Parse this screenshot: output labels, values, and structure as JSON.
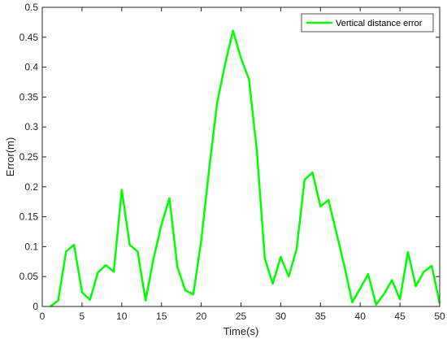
{
  "chart_data": {
    "type": "line",
    "title": "",
    "xlabel": "Time(s)",
    "ylabel": "Error(m)",
    "xlim": [
      0,
      50
    ],
    "ylim": [
      0,
      0.5
    ],
    "x_ticks": [
      0,
      5,
      10,
      15,
      20,
      25,
      30,
      35,
      40,
      45,
      50
    ],
    "y_ticks": [
      0,
      0.05,
      0.1,
      0.15,
      0.2,
      0.25,
      0.3,
      0.35,
      0.4,
      0.45,
      0.5
    ],
    "x_tick_labels": [
      "0",
      "5",
      "10",
      "15",
      "20",
      "25",
      "30",
      "35",
      "40",
      "45",
      "50"
    ],
    "y_tick_labels": [
      "0",
      "0.05",
      "0.1",
      "0.15",
      "0.2",
      "0.25",
      "0.3",
      "0.35",
      "0.4",
      "0.45",
      "0.5"
    ],
    "grid": false,
    "legend_position": "top-right",
    "colors": {
      "line": "#00ff00",
      "axis": "#262626"
    },
    "series": [
      {
        "name": "Vertical distance error",
        "x": [
          1,
          2,
          3,
          4,
          5,
          6,
          7,
          8,
          9,
          10,
          11,
          12,
          13,
          14,
          15,
          16,
          17,
          18,
          19,
          20,
          21,
          22,
          23,
          24,
          25,
          26,
          27,
          28,
          29,
          30,
          31,
          32,
          33,
          34,
          35,
          36,
          37,
          38,
          39,
          40,
          41,
          42,
          43,
          44,
          45,
          46,
          47,
          48,
          49,
          50
        ],
        "values": [
          0.0,
          0.01,
          0.092,
          0.103,
          0.024,
          0.011,
          0.057,
          0.069,
          0.058,
          0.195,
          0.103,
          0.092,
          0.01,
          0.08,
          0.137,
          0.181,
          0.066,
          0.027,
          0.02,
          0.11,
          0.23,
          0.34,
          0.405,
          0.461,
          0.415,
          0.38,
          0.26,
          0.08,
          0.038,
          0.083,
          0.05,
          0.096,
          0.212,
          0.224,
          0.167,
          0.178,
          0.124,
          0.068,
          0.007,
          0.03,
          0.054,
          0.003,
          0.021,
          0.044,
          0.012,
          0.091,
          0.034,
          0.058,
          0.068,
          0.005
        ]
      }
    ]
  }
}
